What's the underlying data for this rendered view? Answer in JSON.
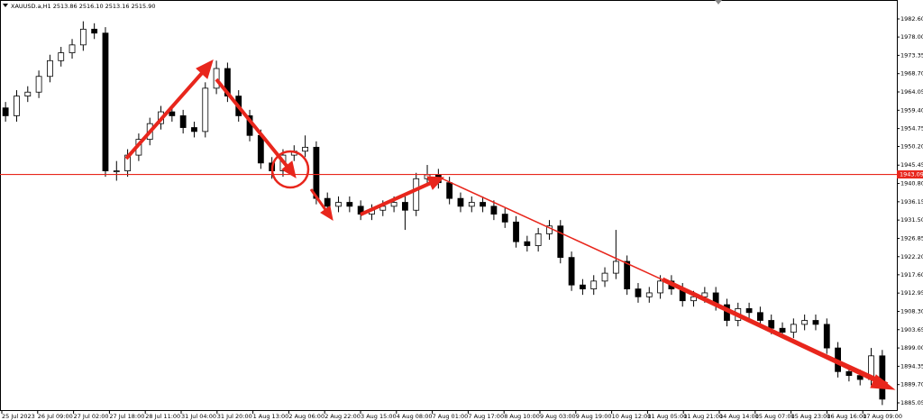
{
  "chart_data": {
    "type": "candlestick",
    "title": "XAUUSD.a,H1 2513.86 2516.10 2513.16 2515.90",
    "ylim": [
      1882.99,
      1987.41
    ],
    "yticks": [
      {
        "value": 1982.6,
        "label": "1982.60"
      },
      {
        "value": 1978,
        "label": "1978.00"
      },
      {
        "value": 1973.35,
        "label": "1973.35"
      },
      {
        "value": 1968.7,
        "label": "1968.70"
      },
      {
        "value": 1964.05,
        "label": "1964.05"
      },
      {
        "value": 1959.4,
        "label": "1959.40"
      },
      {
        "value": 1954.75,
        "label": "1954.75"
      },
      {
        "value": 1950.2,
        "label": "1950.20"
      },
      {
        "value": 1945.45,
        "label": "1945.45"
      },
      {
        "value": 1940.8,
        "label": "1940.80"
      },
      {
        "value": 1936.15,
        "label": "1936.15"
      },
      {
        "value": 1931.5,
        "label": "1931.50"
      },
      {
        "value": 1926.85,
        "label": "1926.85"
      },
      {
        "value": 1922.2,
        "label": "1922.20"
      },
      {
        "value": 1917.6,
        "label": "1917.60"
      },
      {
        "value": 1912.95,
        "label": "1912.95"
      },
      {
        "value": 1908.3,
        "label": "1908.30"
      },
      {
        "value": 1903.65,
        "label": "1903.65"
      },
      {
        "value": 1899,
        "label": "1899.00"
      },
      {
        "value": 1894.35,
        "label": "1894.35"
      },
      {
        "value": 1889.7,
        "label": "1889.70"
      },
      {
        "value": 1885.05,
        "label": "1885.05"
      }
    ],
    "x_axis_labels": [
      "25 Jul 2023",
      "26 Jul 09:00",
      "27 Jul 02:00",
      "27 Jul 18:00",
      "28 Jul 11:00",
      "31 Jul 04:00",
      "31 Jul 20:00",
      "1 Aug 13:00",
      "2 Aug 06:00",
      "2 Aug 22:00",
      "3 Aug 15:00",
      "4 Aug 08:00",
      "7 Aug 01:00",
      "7 Aug 17:00",
      "8 Aug 10:00",
      "9 Aug 03:00",
      "9 Aug 19:00",
      "10 Aug 12:00",
      "11 Aug 05:00",
      "11 Aug 21:00",
      "14 Aug 14:00",
      "15 Aug 07:00",
      "15 Aug 23:00",
      "16 Aug 16:00",
      "17 Aug 09:00"
    ],
    "hline": 1943.09,
    "hline_color": "#e8261c",
    "open": [
      1960,
      1958,
      1963,
      1964,
      1968,
      1972,
      1974,
      1976,
      1980,
      1979,
      1944,
      1944,
      1948,
      1952,
      1956,
      1959,
      1958,
      1955,
      1954,
      1965,
      1970,
      1963,
      1958,
      1953,
      1946,
      1944,
      1948,
      1949,
      1950,
      1937,
      1935,
      1936,
      1935,
      1933,
      1934,
      1935,
      1936,
      1934,
      1942,
      1943,
      1941,
      1937,
      1935,
      1936,
      1935,
      1933,
      1931,
      1926,
      1925,
      1928,
      1930,
      1922,
      1915,
      1914,
      1916,
      1918,
      1921,
      1914,
      1912,
      1913,
      1916,
      1914,
      1911,
      1912,
      1913,
      1910,
      1906,
      1909,
      1908,
      1906,
      1904,
      1903,
      1905,
      1906,
      1905,
      1899,
      1893,
      1892,
      1891,
      1897
    ],
    "high": [
      1961.5,
      1964.5,
      1965.5,
      1969.5,
      1973.5,
      1975.5,
      1977.5,
      1982,
      1981.5,
      1980.5,
      1946.5,
      1949.5,
      1953.5,
      1957.5,
      1960.5,
      1960.5,
      1959.5,
      1956.5,
      1966.5,
      1972,
      1971.5,
      1964.5,
      1959.5,
      1954.5,
      1947.5,
      1949.5,
      1950.5,
      1953,
      1951.5,
      1938.5,
      1937.5,
      1937.5,
      1936.5,
      1935.5,
      1936.5,
      1937.5,
      1937.5,
      1943.5,
      1945.5,
      1944.5,
      1942.5,
      1938.5,
      1937.5,
      1937.5,
      1936.5,
      1934.5,
      1932.5,
      1927.5,
      1929.5,
      1931.5,
      1931.5,
      1923.5,
      1916.5,
      1917.5,
      1919.5,
      1929,
      1922.5,
      1915.5,
      1914.5,
      1917.5,
      1917.5,
      1915.5,
      1913.5,
      1914.5,
      1914.5,
      1911.5,
      1910.5,
      1910.5,
      1909.5,
      1907.5,
      1905.5,
      1906.5,
      1907.5,
      1907.5,
      1906.5,
      1900.5,
      1894.5,
      1893.5,
      1899,
      1898.5
    ],
    "low": [
      1956.5,
      1956.5,
      1961.5,
      1962.5,
      1966.5,
      1970.5,
      1972.5,
      1974.5,
      1977.5,
      1942.5,
      1941.5,
      1942.5,
      1946.5,
      1950.5,
      1954.5,
      1956.5,
      1953.5,
      1952.5,
      1952.5,
      1963.5,
      1961.5,
      1956.5,
      1951.5,
      1944.5,
      1942,
      1942.5,
      1946.5,
      1947.5,
      1935.5,
      1933.5,
      1933.5,
      1933.5,
      1931.5,
      1931.5,
      1932.5,
      1933.5,
      1929,
      1932.5,
      1940.5,
      1939.5,
      1935.5,
      1933.5,
      1933.5,
      1933.5,
      1931.5,
      1929.5,
      1924.5,
      1923.5,
      1923.5,
      1926.5,
      1920.5,
      1913.5,
      1912.5,
      1912.5,
      1914.5,
      1916.5,
      1912.5,
      1910.5,
      1910.5,
      1911.5,
      1912.5,
      1909.5,
      1909.5,
      1910.5,
      1908.5,
      1904.5,
      1904.5,
      1906.5,
      1904.5,
      1902.5,
      1901.5,
      1901.5,
      1903.5,
      1903.5,
      1897.5,
      1891.5,
      1890.5,
      1889.5,
      1889.5,
      1884.5
    ],
    "close": [
      1958,
      1963,
      1964,
      1968,
      1972,
      1974,
      1976,
      1980,
      1979,
      1944,
      1944,
      1948,
      1952,
      1956,
      1959,
      1958,
      1955,
      1954,
      1965,
      1970,
      1963,
      1958,
      1953,
      1946,
      1944,
      1948,
      1949,
      1950,
      1937,
      1935,
      1936,
      1935,
      1933,
      1934,
      1935,
      1936,
      1934,
      1942,
      1943,
      1941,
      1937,
      1935,
      1936,
      1935,
      1933,
      1931,
      1926,
      1925,
      1928,
      1930,
      1922,
      1915,
      1914,
      1916,
      1918,
      1921,
      1914,
      1912,
      1913,
      1916,
      1914,
      1911,
      1912,
      1913,
      1910,
      1906,
      1909,
      1908,
      1906,
      1904,
      1903,
      1905,
      1906,
      1905,
      1899,
      1893,
      1892,
      1891,
      1897,
      1886
    ]
  }
}
